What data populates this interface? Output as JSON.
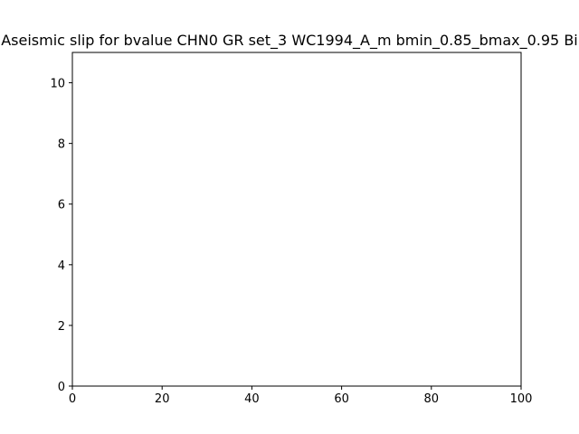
{
  "chart_data": {
    "type": "line",
    "title": "Aseismic slip for bvalue CHN0 GR set_3 WC1994_A_m bmin_0.85_bmax_0.95 Bi",
    "xlabel": "",
    "ylabel": "",
    "xlim": [
      0,
      100
    ],
    "ylim": [
      0,
      11
    ],
    "xticks": [
      0,
      20,
      40,
      60,
      80,
      100
    ],
    "yticks": [
      0,
      2,
      4,
      6,
      8,
      10
    ],
    "series": [],
    "grid": false,
    "legend": "none"
  }
}
